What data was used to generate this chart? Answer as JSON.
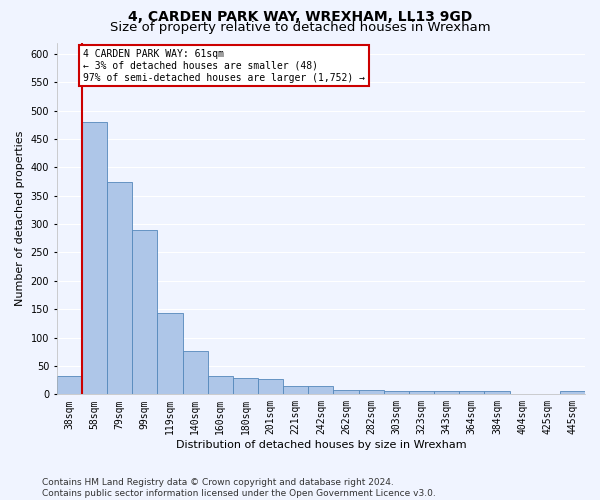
{
  "title": "4, CARDEN PARK WAY, WREXHAM, LL13 9GD",
  "subtitle": "Size of property relative to detached houses in Wrexham",
  "xlabel": "Distribution of detached houses by size in Wrexham",
  "ylabel": "Number of detached properties",
  "categories": [
    "38sqm",
    "58sqm",
    "79sqm",
    "99sqm",
    "119sqm",
    "140sqm",
    "160sqm",
    "180sqm",
    "201sqm",
    "221sqm",
    "242sqm",
    "262sqm",
    "282sqm",
    "303sqm",
    "323sqm",
    "343sqm",
    "364sqm",
    "384sqm",
    "404sqm",
    "425sqm",
    "445sqm"
  ],
  "values": [
    32,
    480,
    375,
    290,
    143,
    76,
    32,
    29,
    27,
    15,
    15,
    8,
    7,
    5,
    5,
    5,
    5,
    5,
    0,
    0,
    5
  ],
  "bar_color": "#aec6e8",
  "bar_edge_color": "#5588bb",
  "property_line_x": 0.5,
  "annotation_line1": "4 CARDEN PARK WAY: 61sqm",
  "annotation_line2": "← 3% of detached houses are smaller (48)",
  "annotation_line3": "97% of semi-detached houses are larger (1,752) →",
  "annotation_box_color": "#ffffff",
  "annotation_box_edge_color": "#cc0000",
  "vline_color": "#cc0000",
  "ylim": [
    0,
    620
  ],
  "yticks": [
    0,
    50,
    100,
    150,
    200,
    250,
    300,
    350,
    400,
    450,
    500,
    550,
    600
  ],
  "footer_line1": "Contains HM Land Registry data © Crown copyright and database right 2024.",
  "footer_line2": "Contains public sector information licensed under the Open Government Licence v3.0.",
  "background_color": "#f0f4ff",
  "grid_color": "#ffffff",
  "title_fontsize": 10,
  "subtitle_fontsize": 9.5,
  "axis_label_fontsize": 8,
  "tick_fontsize": 7,
  "footer_fontsize": 6.5
}
